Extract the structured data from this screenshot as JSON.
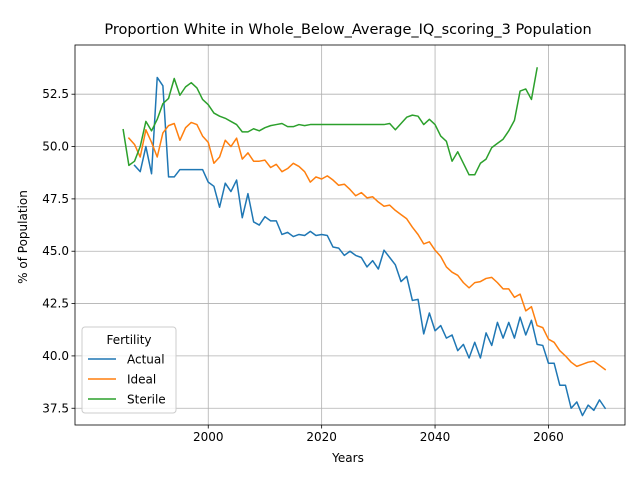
{
  "chart_data": {
    "type": "line",
    "title": "Proportion White in Whole_Below_Average_IQ_scoring_3 Population",
    "xlabel": "Years",
    "ylabel": "% of Population",
    "xlim": [
      1976.5,
      2073.5
    ],
    "ylim": [
      36.7,
      54.85
    ],
    "xticks": [
      2000,
      2020,
      2040,
      2060
    ],
    "yticks": [
      37.5,
      40.0,
      42.5,
      45.0,
      47.5,
      50.0,
      52.5
    ],
    "xtick_labels": [
      "2000",
      "2020",
      "2040",
      "2060"
    ],
    "ytick_labels": [
      "37.5",
      "40.0",
      "42.5",
      "45.0",
      "47.5",
      "50.0",
      "52.5"
    ],
    "grid": true,
    "legend": {
      "title": "Fertility",
      "position": "bottom-left"
    },
    "series": [
      {
        "name": "Actual",
        "color": "#1f77b4",
        "x": [
          1987,
          1988,
          1989,
          1990,
          1991,
          1992,
          1993,
          1994,
          1995,
          1996,
          1997,
          1998,
          1999,
          2000,
          2001,
          2002,
          2003,
          2004,
          2005,
          2006,
          2007,
          2008,
          2009,
          2010,
          2011,
          2012,
          2013,
          2014,
          2015,
          2016,
          2017,
          2018,
          2019,
          2020,
          2021,
          2022,
          2023,
          2024,
          2025,
          2026,
          2027,
          2028,
          2029,
          2030,
          2031,
          2032,
          2033,
          2034,
          2035,
          2036,
          2037,
          2038,
          2039,
          2040,
          2041,
          2042,
          2043,
          2044,
          2045,
          2046,
          2047,
          2048,
          2049,
          2050,
          2051,
          2052,
          2053,
          2054,
          2055,
          2056,
          2057,
          2058,
          2059,
          2060,
          2061,
          2062,
          2063,
          2064,
          2065,
          2066,
          2067,
          2068,
          2069,
          2070
        ],
        "values": [
          49.1,
          48.8,
          50.0,
          48.7,
          53.3,
          52.9,
          48.55,
          48.55,
          48.9,
          48.9,
          48.9,
          48.9,
          48.9,
          48.3,
          48.1,
          47.1,
          48.25,
          47.85,
          48.4,
          46.6,
          47.75,
          46.4,
          46.25,
          46.65,
          46.45,
          46.45,
          45.8,
          45.9,
          45.7,
          45.8,
          45.75,
          45.95,
          45.75,
          45.8,
          45.75,
          45.2,
          45.15,
          44.8,
          45.0,
          44.8,
          44.7,
          44.25,
          44.55,
          44.15,
          45.05,
          44.7,
          44.35,
          43.55,
          43.8,
          42.65,
          42.7,
          41.05,
          42.05,
          41.2,
          41.45,
          40.85,
          41.0,
          40.25,
          40.55,
          39.9,
          40.65,
          39.9,
          41.1,
          40.5,
          41.6,
          40.85,
          41.6,
          40.85,
          41.85,
          41.0,
          41.7,
          40.55,
          40.5,
          39.65,
          39.65,
          38.6,
          38.6,
          37.5,
          37.8,
          37.15,
          37.65,
          37.4,
          37.9,
          37.5
        ]
      },
      {
        "name": "Ideal",
        "color": "#ff7f0e",
        "x": [
          1986,
          1987,
          1988,
          1989,
          1990,
          1991,
          1992,
          1993,
          1994,
          1995,
          1996,
          1997,
          1998,
          1999,
          2000,
          2001,
          2002,
          2003,
          2004,
          2005,
          2006,
          2007,
          2008,
          2009,
          2010,
          2011,
          2012,
          2013,
          2014,
          2015,
          2016,
          2017,
          2018,
          2019,
          2020,
          2021,
          2022,
          2023,
          2024,
          2025,
          2026,
          2027,
          2028,
          2029,
          2030,
          2031,
          2032,
          2033,
          2034,
          2035,
          2036,
          2037,
          2038,
          2039,
          2040,
          2041,
          2042,
          2043,
          2044,
          2045,
          2046,
          2047,
          2048,
          2049,
          2050,
          2051,
          2052,
          2053,
          2054,
          2055,
          2056,
          2057,
          2058,
          2059,
          2060,
          2061,
          2062,
          2063,
          2064,
          2065,
          2066,
          2067,
          2068,
          2069,
          2070
        ],
        "values": [
          50.4,
          50.1,
          49.5,
          50.8,
          50.2,
          49.5,
          50.65,
          51.0,
          51.1,
          50.3,
          50.9,
          51.15,
          51.05,
          50.5,
          50.2,
          49.2,
          49.5,
          50.3,
          50.0,
          50.4,
          49.4,
          49.7,
          49.3,
          49.3,
          49.35,
          49.0,
          49.15,
          48.8,
          48.95,
          49.2,
          49.05,
          48.8,
          48.3,
          48.55,
          48.45,
          48.6,
          48.4,
          48.15,
          48.2,
          47.95,
          47.65,
          47.8,
          47.55,
          47.6,
          47.35,
          47.15,
          47.2,
          46.95,
          46.75,
          46.55,
          46.15,
          45.8,
          45.35,
          45.45,
          45.05,
          44.75,
          44.25,
          44.0,
          43.85,
          43.5,
          43.25,
          43.5,
          43.55,
          43.7,
          43.75,
          43.5,
          43.2,
          43.2,
          42.8,
          42.95,
          42.15,
          42.35,
          41.45,
          41.35,
          40.8,
          40.65,
          40.25,
          40.0,
          39.7,
          39.5,
          39.6,
          39.7,
          39.75,
          39.55,
          39.35
        ]
      },
      {
        "name": "Sterile",
        "color": "#2ca02c",
        "x": [
          1985,
          1986,
          1987,
          1988,
          1989,
          1990,
          1991,
          1992,
          1993,
          1994,
          1995,
          1996,
          1997,
          1998,
          1999,
          2000,
          2001,
          2002,
          2003,
          2004,
          2005,
          2006,
          2007,
          2008,
          2009,
          2010,
          2011,
          2012,
          2013,
          2014,
          2015,
          2016,
          2017,
          2018,
          2019,
          2020,
          2021,
          2022,
          2023,
          2024,
          2025,
          2026,
          2027,
          2028,
          2029,
          2030,
          2031,
          2032,
          2033,
          2034,
          2035,
          2036,
          2037,
          2038,
          2039,
          2040,
          2041,
          2042,
          2043,
          2044,
          2045,
          2046,
          2047,
          2048,
          2049,
          2050,
          2051,
          2052,
          2053,
          2054,
          2055,
          2056,
          2057,
          2058
        ],
        "values": [
          50.8,
          49.1,
          49.3,
          50.0,
          51.2,
          50.75,
          51.3,
          52.05,
          52.3,
          53.25,
          52.45,
          52.85,
          53.05,
          52.8,
          52.25,
          52.0,
          51.6,
          51.45,
          51.35,
          51.2,
          51.05,
          50.7,
          50.7,
          50.85,
          50.75,
          50.9,
          51.0,
          51.05,
          51.1,
          50.95,
          50.95,
          51.05,
          51.0,
          51.05,
          51.05,
          51.05,
          51.05,
          51.05,
          51.05,
          51.05,
          51.05,
          51.05,
          51.05,
          51.05,
          51.05,
          51.05,
          51.05,
          51.1,
          50.8,
          51.1,
          51.4,
          51.5,
          51.45,
          51.05,
          51.3,
          51.05,
          50.5,
          50.25,
          49.3,
          49.75,
          49.2,
          48.65,
          48.65,
          49.2,
          49.4,
          49.95,
          50.15,
          50.35,
          50.75,
          51.25,
          52.65,
          52.75,
          52.25,
          53.75
        ]
      }
    ]
  }
}
